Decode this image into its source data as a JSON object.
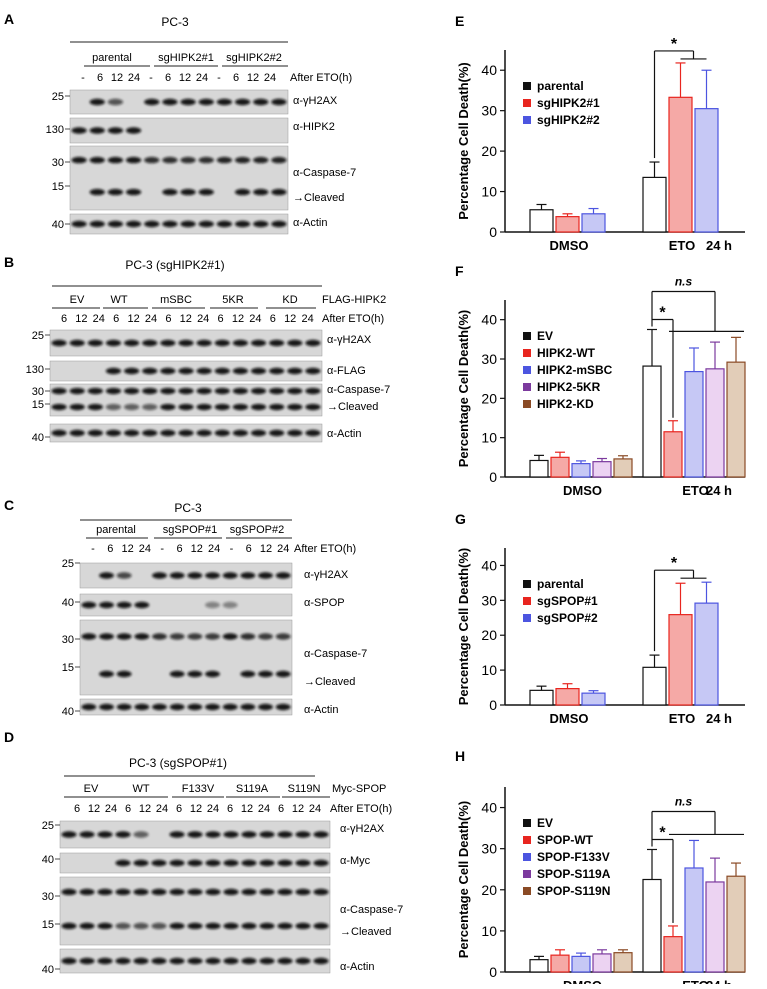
{
  "blots": [
    {
      "letter": "A",
      "cell_line": "PC-3",
      "groups": [
        "parental",
        "sgHIPK2#1",
        "sgHIPK2#2"
      ],
      "lanes": [
        "-",
        "6",
        "12",
        "24",
        "-",
        "6",
        "12",
        "24",
        "-",
        "6",
        "12",
        "24"
      ],
      "lane_caption": "After ETO(h)",
      "extra_caption": "",
      "markers": [
        "25",
        "130",
        "30",
        "15",
        "40"
      ],
      "band_labels": [
        "α-γH2AX",
        "α-HIPK2",
        "α-Caspase-7",
        "→Cleaved",
        "α-Actin"
      ]
    },
    {
      "letter": "B",
      "cell_line": "PC-3 (sgHIPK2#1)",
      "groups": [
        "EV",
        "WT",
        "mSBC",
        "5KR",
        "KD"
      ],
      "lanes": [
        "6",
        "12",
        "24",
        "6",
        "12",
        "24",
        "6",
        "12",
        "24",
        "6",
        "12",
        "24",
        "6",
        "12",
        "24"
      ],
      "lane_caption": "After ETO(h)",
      "extra_caption": "FLAG-HIPK2",
      "markers": [
        "25",
        "130",
        "30",
        "15",
        "40"
      ],
      "band_labels": [
        "α-γH2AX",
        "α-FLAG",
        "α-Caspase-7",
        "→Cleaved",
        "α-Actin"
      ]
    },
    {
      "letter": "C",
      "cell_line": "PC-3",
      "groups": [
        "parental",
        "sgSPOP#1",
        "sgSPOP#2"
      ],
      "lanes": [
        "-",
        "6",
        "12",
        "24",
        "-",
        "6",
        "12",
        "24",
        "-",
        "6",
        "12",
        "24"
      ],
      "lane_caption": "After ETO(h)",
      "extra_caption": "",
      "markers": [
        "25",
        "40",
        "30",
        "15",
        "40"
      ],
      "band_labels": [
        "α-γH2AX",
        "α-SPOP",
        "α-Caspase-7",
        "→Cleaved",
        "α-Actin"
      ]
    },
    {
      "letter": "D",
      "cell_line": "PC-3 (sgSPOP#1)",
      "groups": [
        "EV",
        "WT",
        "F133V",
        "S119A",
        "S119N"
      ],
      "lanes": [
        "6",
        "12",
        "24",
        "6",
        "12",
        "24",
        "6",
        "12",
        "24",
        "6",
        "12",
        "24",
        "6",
        "12",
        "24"
      ],
      "lane_caption": "After ETO(h)",
      "extra_caption": "Myc-SPOP",
      "markers": [
        "25",
        "40",
        "30",
        "15",
        "40"
      ],
      "band_labels": [
        "α-γH2AX",
        "α-Myc",
        "α-Caspase-7",
        "→Cleaved",
        "α-Actin"
      ]
    }
  ],
  "chart_data": [
    {
      "letter": "E",
      "type": "bar",
      "categories": [
        "DMSO",
        "ETO"
      ],
      "ylabel": "Percentage Cell Death(%)",
      "ylim": [
        0,
        45
      ],
      "yticks": [
        "0",
        "10",
        "20",
        "30",
        "40"
      ],
      "time_label": "24 h",
      "significance": [
        "*"
      ],
      "legend_position": "top-left",
      "series": [
        {
          "name": "parental",
          "color": "#111111",
          "fill": "#ffffff",
          "values": [
            5.5,
            13.5
          ],
          "errors": [
            1.3,
            3.8
          ]
        },
        {
          "name": "sgHIPK2#1",
          "color": "#e8251f",
          "fill": "#f5a9a6",
          "values": [
            3.8,
            33.3
          ],
          "errors": [
            0.7,
            8.5
          ]
        },
        {
          "name": "sgHIPK2#2",
          "color": "#4c55e0",
          "fill": "#c6c8f5",
          "values": [
            4.5,
            30.5
          ],
          "errors": [
            1.3,
            9.5
          ]
        }
      ]
    },
    {
      "letter": "F",
      "type": "bar",
      "categories": [
        "DMSO",
        "ETO"
      ],
      "ylabel": "Percentage Cell Death(%)",
      "ylim": [
        0,
        45
      ],
      "yticks": [
        "0",
        "10",
        "20",
        "30",
        "40"
      ],
      "time_label": "24 h",
      "significance": [
        "*",
        "n.s"
      ],
      "legend_position": "top-left",
      "series": [
        {
          "name": "EV",
          "color": "#111111",
          "fill": "#ffffff",
          "values": [
            4.2,
            28.2
          ],
          "errors": [
            1.3,
            9.3
          ]
        },
        {
          "name": "HIPK2-WT",
          "color": "#e8251f",
          "fill": "#f5a9a6",
          "values": [
            5.0,
            11.5
          ],
          "errors": [
            1.3,
            2.8
          ]
        },
        {
          "name": "HIPK2-mSBC",
          "color": "#4c55e0",
          "fill": "#c6c8f5",
          "values": [
            3.4,
            26.8
          ],
          "errors": [
            0.7,
            6.0
          ]
        },
        {
          "name": "HIPK2-5KR",
          "color": "#7c3a9e",
          "fill": "#ecd3f2",
          "values": [
            3.9,
            27.5
          ],
          "errors": [
            0.8,
            6.8
          ]
        },
        {
          "name": "HIPK2-KD",
          "color": "#8a4a25",
          "fill": "#e2cdb8",
          "values": [
            4.6,
            29.2
          ],
          "errors": [
            0.8,
            6.3
          ]
        }
      ]
    },
    {
      "letter": "G",
      "type": "bar",
      "categories": [
        "DMSO",
        "ETO"
      ],
      "ylabel": "Percentage Cell Death(%)",
      "ylim": [
        0,
        45
      ],
      "yticks": [
        "0",
        "10",
        "20",
        "30",
        "40"
      ],
      "time_label": "24 h",
      "significance": [
        "*"
      ],
      "legend_position": "top-left",
      "series": [
        {
          "name": "parental",
          "color": "#111111",
          "fill": "#ffffff",
          "values": [
            4.2,
            10.8
          ],
          "errors": [
            1.2,
            3.5
          ]
        },
        {
          "name": "sgSPOP#1",
          "color": "#e8251f",
          "fill": "#f5a9a6",
          "values": [
            4.7,
            25.9
          ],
          "errors": [
            1.4,
            9.0
          ]
        },
        {
          "name": "sgSPOP#2",
          "color": "#4c55e0",
          "fill": "#c6c8f5",
          "values": [
            3.4,
            29.2
          ],
          "errors": [
            0.7,
            6.0
          ]
        }
      ]
    },
    {
      "letter": "H",
      "type": "bar",
      "categories": [
        "DMSO",
        "ETO"
      ],
      "ylabel": "Percentage Cell Death(%)",
      "ylim": [
        0,
        45
      ],
      "yticks": [
        "0",
        "10",
        "20",
        "30",
        "40"
      ],
      "time_label": "24 h",
      "significance": [
        "*",
        "n.s"
      ],
      "legend_position": "top-left",
      "series": [
        {
          "name": "EV",
          "color": "#111111",
          "fill": "#ffffff",
          "values": [
            3.0,
            22.5
          ],
          "errors": [
            0.8,
            7.3
          ]
        },
        {
          "name": "SPOP-WT",
          "color": "#e8251f",
          "fill": "#f5a9a6",
          "values": [
            4.1,
            8.6
          ],
          "errors": [
            1.3,
            2.6
          ]
        },
        {
          "name": "SPOP-F133V",
          "color": "#4c55e0",
          "fill": "#c6c8f5",
          "values": [
            3.8,
            25.3
          ],
          "errors": [
            0.8,
            6.7
          ]
        },
        {
          "name": "SPOP-S119A",
          "color": "#7c3a9e",
          "fill": "#ecd3f2",
          "values": [
            4.4,
            21.9
          ],
          "errors": [
            1.0,
            5.8
          ]
        },
        {
          "name": "SPOP-S119N",
          "color": "#8a4a25",
          "fill": "#e2cdb8",
          "values": [
            4.7,
            23.3
          ],
          "errors": [
            0.7,
            3.2
          ]
        }
      ]
    }
  ]
}
